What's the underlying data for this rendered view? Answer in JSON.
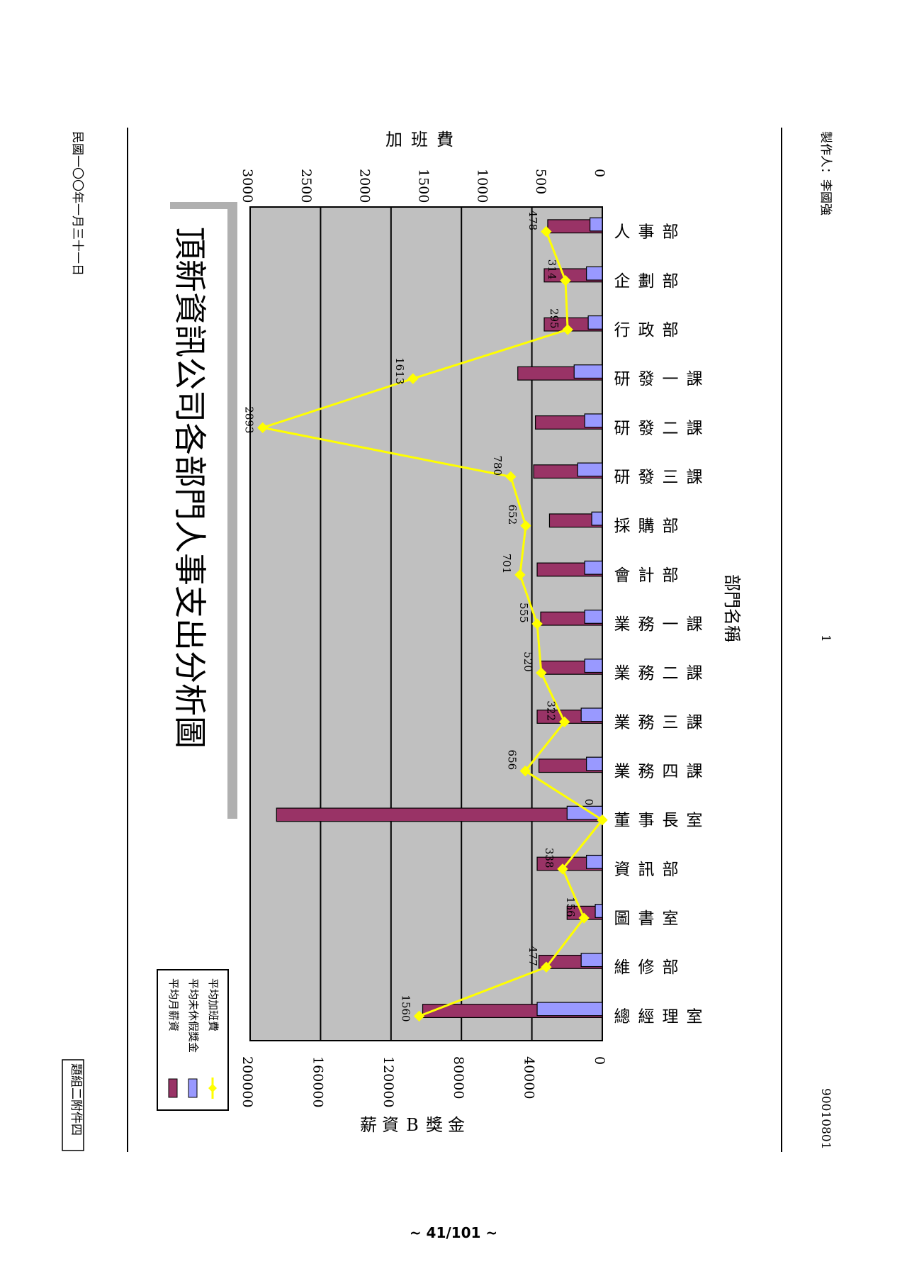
{
  "header": {
    "doc_tag": "題組二附件四",
    "date": "民國一〇〇年一月三十一日"
  },
  "footer": {
    "code": "90010801",
    "page_number": "1",
    "author": "製作人：李國強",
    "page": "~ 41/101 ~"
  },
  "colors": {
    "salary": "#993366",
    "vacation": "#9999ff",
    "overtime": "#ffff00",
    "plot_bg": "#c0c0c0"
  },
  "chart_data": {
    "type": "bar",
    "title": "頂新資訊公司各部門人事支出分析圖",
    "xlabel": "部門名稱",
    "ylabel_left": "薪資B獎金",
    "ylabel_right": "加班費",
    "ylim_left": [
      0,
      200000
    ],
    "ylim_right": [
      0,
      3000
    ],
    "left_ticks": [
      "0",
      "40000",
      "80000",
      "120000",
      "160000",
      "200000"
    ],
    "right_ticks": [
      "0",
      "500",
      "1000",
      "1500",
      "2000",
      "2500",
      "3000"
    ],
    "grid": true,
    "legend_position": "top-left",
    "categories": [
      "人事部",
      "企劃部",
      "行政部",
      "研發一課",
      "研發二課",
      "研發三課",
      "採購部",
      "會計部",
      "業務一課",
      "業務二課",
      "業務三課",
      "業務四課",
      "董事長室",
      "資訊部",
      "圖書室",
      "維修部",
      "總經理室"
    ],
    "series": [
      {
        "name": "平均月薪資",
        "axis": "left",
        "kind": "bar",
        "values": [
          31000,
          33000,
          33000,
          48000,
          38000,
          39000,
          30000,
          37000,
          35000,
          35000,
          37000,
          36000,
          185000,
          37000,
          20000,
          36000,
          102000
        ]
      },
      {
        "name": "平均未休假獎金",
        "axis": "left",
        "kind": "bar",
        "values": [
          7000,
          9000,
          8000,
          16000,
          10000,
          14000,
          6000,
          10000,
          10000,
          10000,
          12000,
          9000,
          20000,
          9000,
          4000,
          12000,
          37000
        ]
      },
      {
        "name": "平均加班費",
        "axis": "right",
        "kind": "line",
        "values": [
          478,
          314,
          295,
          1613,
          2893,
          780,
          652,
          701,
          555,
          520,
          322,
          656,
          0,
          338,
          156,
          477,
          1560
        ],
        "labels": [
          "478",
          "314",
          "295",
          "1613",
          "2893",
          "780",
          "652",
          "701",
          "555",
          "520",
          "322",
          "656",
          "0",
          "338",
          "156",
          "477",
          "1560"
        ]
      }
    ]
  }
}
